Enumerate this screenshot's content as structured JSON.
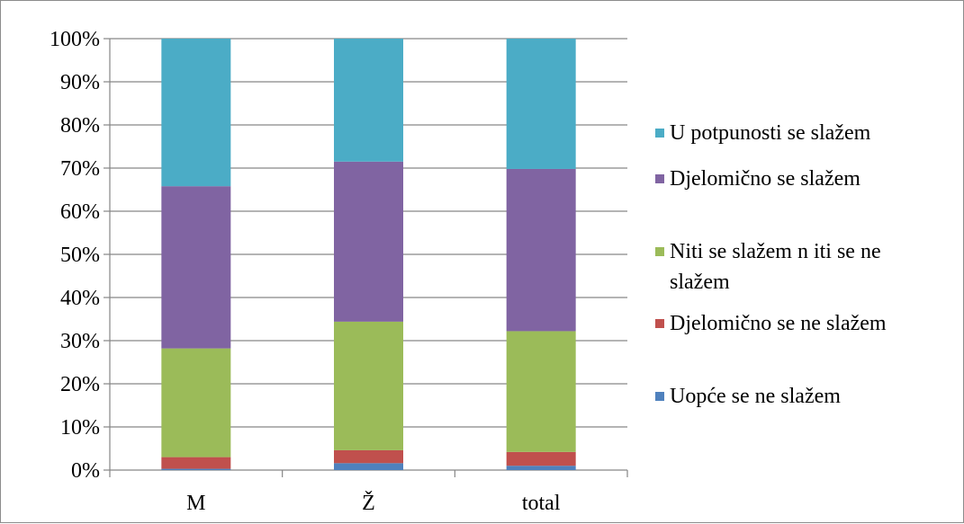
{
  "chart_data": {
    "type": "bar",
    "stacked": "percent",
    "categories": [
      "M",
      "Ž",
      "total"
    ],
    "series": [
      {
        "name": "Uopće se ne slažem",
        "color": "#4F81BD",
        "values": [
          0.3,
          1.6,
          1.0
        ]
      },
      {
        "name": "Djelomično se ne slažem",
        "color": "#C0504D",
        "values": [
          2.7,
          3.0,
          3.2
        ]
      },
      {
        "name": "Niti se slažem n iti se ne slažem",
        "color": "#9BBB59",
        "values": [
          25.2,
          29.8,
          28.0
        ]
      },
      {
        "name": "Djelomično se slažem",
        "color": "#8064A2",
        "values": [
          37.6,
          37.1,
          37.6
        ]
      },
      {
        "name": "U potpunosti se slažem",
        "color": "#4BACC6",
        "values": [
          34.2,
          28.5,
          30.2
        ]
      }
    ],
    "legend_order": [
      4,
      3,
      2,
      1,
      0
    ],
    "legend_lines": [
      [
        "U potpunosti se slažem"
      ],
      [
        "Djelomično se slažem"
      ],
      [
        "Niti se slažem n iti se ne",
        "slažem"
      ],
      [
        "Djelomično se ne slažem"
      ],
      [
        "Uopće se ne slažem"
      ]
    ],
    "yticks": [
      "0%",
      "10%",
      "20%",
      "30%",
      "40%",
      "50%",
      "60%",
      "70%",
      "80%",
      "90%",
      "100%"
    ],
    "ylim": [
      0,
      100
    ],
    "grid": true,
    "legend_position": "right",
    "title": "",
    "xlabel": "",
    "ylabel": ""
  }
}
